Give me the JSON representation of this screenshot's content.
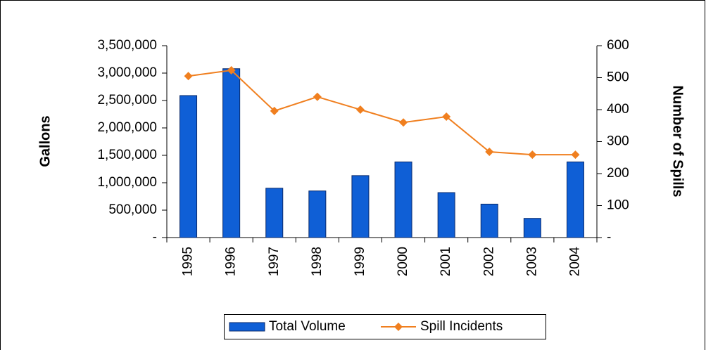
{
  "chart_data": {
    "type": "bar_line",
    "categories": [
      "1995",
      "1996",
      "1997",
      "1998",
      "1999",
      "2000",
      "2001",
      "2002",
      "2003",
      "2004"
    ],
    "series": [
      {
        "name": "Total Volume",
        "type": "bar",
        "color": "#0f5fd6",
        "axis": "y",
        "values": [
          2590000,
          3080000,
          900000,
          850000,
          1130000,
          1380000,
          820000,
          610000,
          350000,
          1380000
        ]
      },
      {
        "name": "Spill Incidents",
        "type": "line",
        "color": "#f07f1f",
        "axis": "y2",
        "values": [
          505,
          523,
          396,
          440,
          400,
          360,
          378,
          268,
          259,
          259
        ]
      }
    ],
    "ylabel": "Gallons",
    "y2label": "Number of Spills",
    "ylim": [
      0,
      3500000
    ],
    "yticks": [
      {
        "value": 0,
        "label": "-"
      },
      {
        "value": 500000,
        "label": "500,000"
      },
      {
        "value": 1000000,
        "label": "1,000,000"
      },
      {
        "value": 1500000,
        "label": "1,500,000"
      },
      {
        "value": 2000000,
        "label": "2,000,000"
      },
      {
        "value": 2500000,
        "label": "2,500,000"
      },
      {
        "value": 3000000,
        "label": "3,000,000"
      },
      {
        "value": 3500000,
        "label": "3,500,000"
      }
    ],
    "y2lim": [
      0,
      600
    ],
    "y2ticks": [
      {
        "value": 0,
        "label": "-"
      },
      100,
      200,
      300,
      400,
      500,
      600
    ],
    "grid": false,
    "legend": "bottom"
  }
}
